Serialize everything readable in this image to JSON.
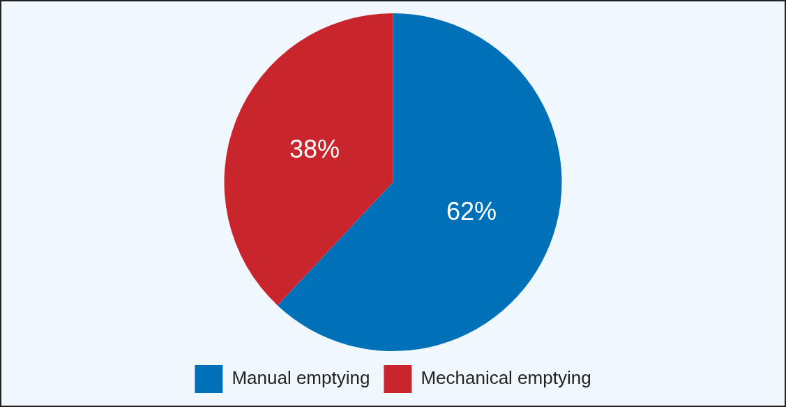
{
  "chart_data": {
    "type": "pie",
    "categories": [
      "Manual emptying",
      "Mechanical emptying"
    ],
    "values": [
      62,
      38
    ],
    "colors": [
      "#0070b8",
      "#c8252c"
    ],
    "value_labels": [
      "62%",
      "38%"
    ],
    "legend": "bottom"
  }
}
